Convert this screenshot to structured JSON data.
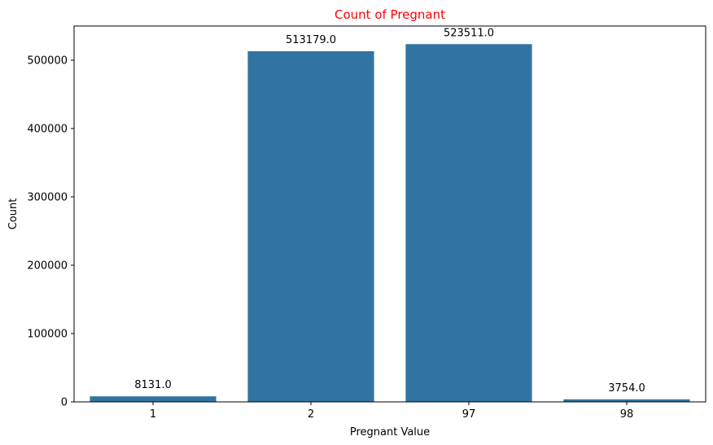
{
  "chart_data": {
    "type": "bar",
    "title": "Count of Pregnant",
    "xlabel": "Pregnant Value",
    "ylabel": "Count",
    "categories": [
      "1",
      "2",
      "97",
      "98"
    ],
    "values": [
      8131,
      513179,
      523511,
      3754
    ],
    "value_labels": [
      "8131.0",
      "513179.0",
      "523511.0",
      "3754.0"
    ],
    "ylim": [
      0,
      550000
    ],
    "yticks": [
      0,
      100000,
      200000,
      300000,
      400000,
      500000
    ],
    "ytick_labels": [
      "0",
      "100000",
      "200000",
      "300000",
      "400000",
      "500000"
    ],
    "grid": false,
    "colors": {
      "bar": "#3274a1",
      "title": "#ff0000"
    }
  }
}
